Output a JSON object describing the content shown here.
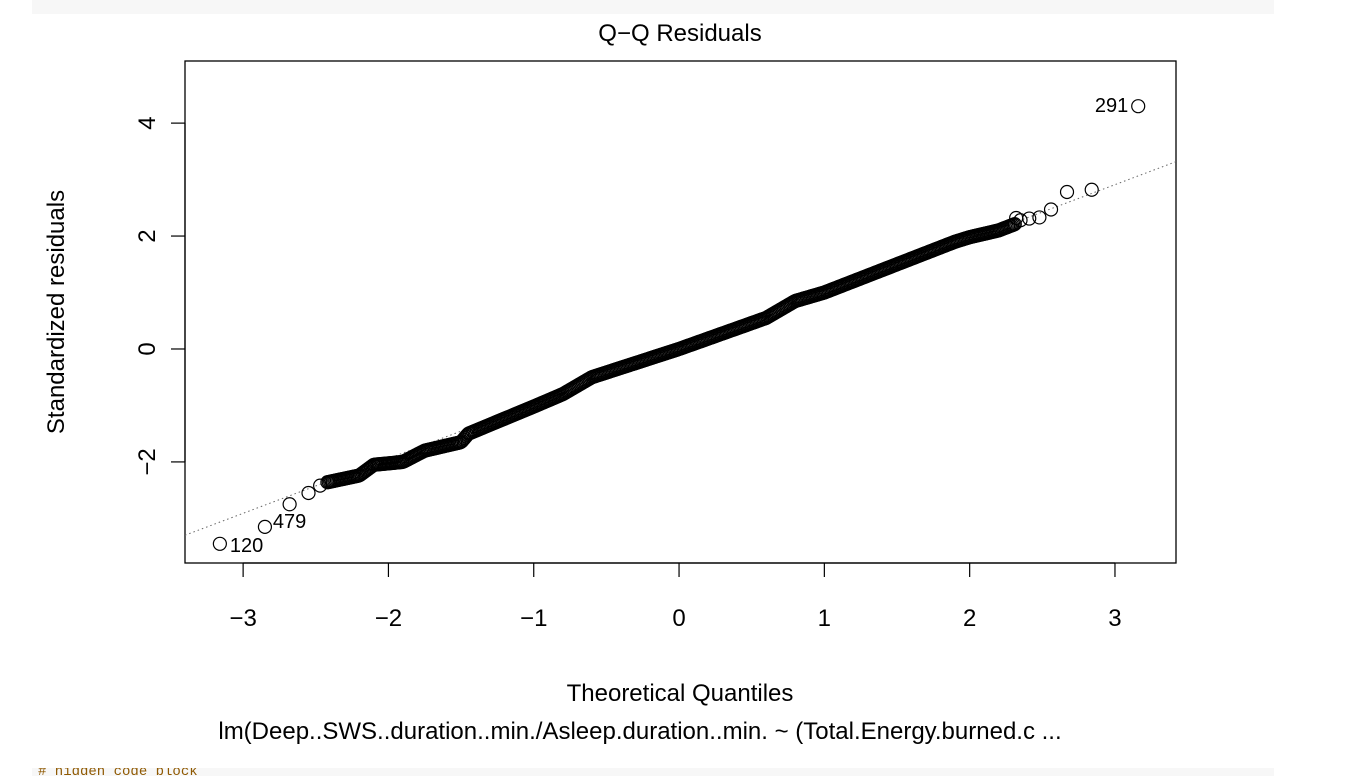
{
  "chart_data": {
    "type": "scatter",
    "title": "Q−Q Residuals",
    "xlabel": "Theoretical Quantiles",
    "ylabel": "Standardized residuals",
    "subtitle": "lm(Deep..SWS..duration..min./Asleep.duration..min. ~ (Total.Energy.burned.c ...",
    "xlim": [
      -3.4,
      3.42
    ],
    "ylim": [
      -3.79,
      5.1
    ],
    "xticks": [
      -3,
      -2,
      -1,
      0,
      1,
      2,
      3
    ],
    "xtick_labels": [
      "−3",
      "−2",
      "−1",
      "0",
      "1",
      "2",
      "3"
    ],
    "yticks": [
      -2,
      0,
      2,
      4
    ],
    "ytick_labels": [
      "−2",
      "0",
      "2",
      "4"
    ],
    "reference_line": {
      "intercept": 0.0,
      "slope": 0.97,
      "style": "dotted"
    },
    "grid": false,
    "legend": "none",
    "n_points": 520,
    "outliers": [
      {
        "label": "291",
        "x": 3.16,
        "y": 4.3
      },
      {
        "label": "479",
        "x": -2.85,
        "y": -3.15
      },
      {
        "label": "120",
        "x": -3.16,
        "y": -3.45
      }
    ],
    "tail_points": [
      {
        "x": -2.68,
        "y": -2.75
      },
      {
        "x": -2.55,
        "y": -2.55
      },
      {
        "x": -2.47,
        "y": -2.42
      },
      {
        "x": 2.84,
        "y": 2.82
      },
      {
        "x": 2.67,
        "y": 2.78
      },
      {
        "x": 2.56,
        "y": 2.47
      },
      {
        "x": 2.48,
        "y": 2.33
      },
      {
        "x": 2.41,
        "y": 2.31
      },
      {
        "x": 2.35,
        "y": 2.28
      }
    ],
    "body_shape": {
      "x_range": [
        -2.42,
        2.32
      ],
      "bend_points": [
        {
          "x": -2.42,
          "y": -2.36
        },
        {
          "x": -2.2,
          "y": -2.24
        },
        {
          "x": -2.1,
          "y": -2.05
        },
        {
          "x": -1.9,
          "y": -2.0
        },
        {
          "x": -1.75,
          "y": -1.8
        },
        {
          "x": -1.5,
          "y": -1.65
        },
        {
          "x": -1.45,
          "y": -1.5
        },
        {
          "x": -1.0,
          "y": -1.02
        },
        {
          "x": -0.8,
          "y": -0.8
        },
        {
          "x": -0.6,
          "y": -0.5
        },
        {
          "x": 0.0,
          "y": 0.0
        },
        {
          "x": 0.6,
          "y": 0.55
        },
        {
          "x": 0.8,
          "y": 0.85
        },
        {
          "x": 1.0,
          "y": 1.0
        },
        {
          "x": 1.4,
          "y": 1.4
        },
        {
          "x": 1.7,
          "y": 1.7
        },
        {
          "x": 1.9,
          "y": 1.9
        },
        {
          "x": 2.0,
          "y": 1.98
        },
        {
          "x": 2.2,
          "y": 2.1
        },
        {
          "x": 2.32,
          "y": 2.22
        }
      ]
    }
  },
  "next_code_line": "# hidden code block"
}
